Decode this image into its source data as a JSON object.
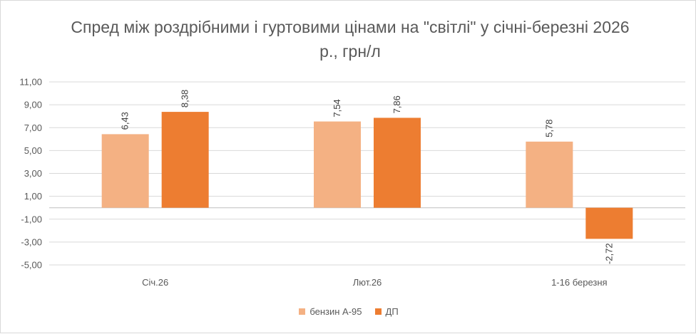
{
  "chart_data": {
    "type": "bar",
    "title": "Спред між роздрібними і гуртовими цінами на \"світлі\" у січні-березні 2026 р., грн/л",
    "xlabel": "",
    "ylabel": "",
    "ylim": [
      -5,
      11
    ],
    "yticks": [
      "11,00",
      "9,00",
      "7,00",
      "5,00",
      "3,00",
      "1,00",
      "-1,00",
      "-3,00",
      "-5,00"
    ],
    "ytick_values": [
      11,
      9,
      7,
      5,
      3,
      1,
      -1,
      -3,
      -5
    ],
    "categories": [
      "Січ.26",
      "Лют.26",
      "1-16 березня"
    ],
    "series": [
      {
        "name": "бензин А-95",
        "color": "#F4B183",
        "values": [
          6.43,
          7.54,
          5.78
        ],
        "labels": [
          "6,43",
          "7,54",
          "5,78"
        ]
      },
      {
        "name": "ДП",
        "color": "#ED7D31",
        "values": [
          8.38,
          7.86,
          -2.72
        ],
        "labels": [
          "8,38",
          "7,86",
          "-2,72"
        ]
      }
    ],
    "grid": true,
    "legend": "bottom"
  }
}
